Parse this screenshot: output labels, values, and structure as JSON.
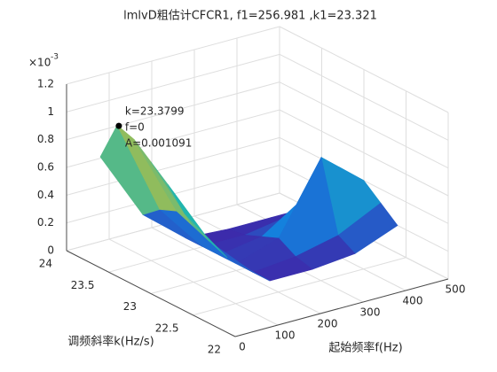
{
  "chart_data": {
    "type": "surface",
    "title": "lmlvD粗估计CFCR1, f1=256.981 ,k1=23.321",
    "xlabel": "起始频率f(Hz)",
    "ylabel": "调频斜率k(Hz/s)",
    "z_exponent_base": "×10",
    "z_exponent": "-3",
    "x": [
      0,
      100,
      200,
      300,
      400,
      500
    ],
    "y": [
      22.6,
      22.8,
      23.0,
      23.2,
      23.4,
      23.6
    ],
    "z": [
      [
        0.7,
        0.3,
        0.05,
        0.05,
        0.08,
        0.2
      ],
      [
        0.85,
        0.35,
        0.05,
        0.08,
        0.15,
        0.3
      ],
      [
        0.95,
        0.4,
        0.05,
        0.15,
        0.65,
        0.4
      ],
      [
        1.05,
        0.45,
        0.05,
        0.1,
        0.3,
        0.15
      ],
      [
        1.09,
        0.4,
        0.05,
        0.05,
        0.1,
        0.05
      ],
      [
        0.8,
        0.3,
        0.05,
        0.03,
        0.03,
        0.03
      ]
    ],
    "xlim": [
      0,
      500
    ],
    "xticks": [
      0,
      100,
      200,
      300,
      400,
      500
    ],
    "ylim": [
      22,
      24
    ],
    "yticks": [
      22,
      22.5,
      23,
      23.5,
      24
    ],
    "zlim": [
      0,
      1.2
    ],
    "zticks": [
      0,
      0.2,
      0.4,
      0.6,
      0.8,
      1,
      1.2
    ],
    "grid": true,
    "colormap": "parula",
    "datatip": {
      "x": 0,
      "y": 23.3799,
      "z": 1.091,
      "labels": [
        "k=23.3799",
        "f=0",
        "A=0.001091"
      ]
    }
  }
}
